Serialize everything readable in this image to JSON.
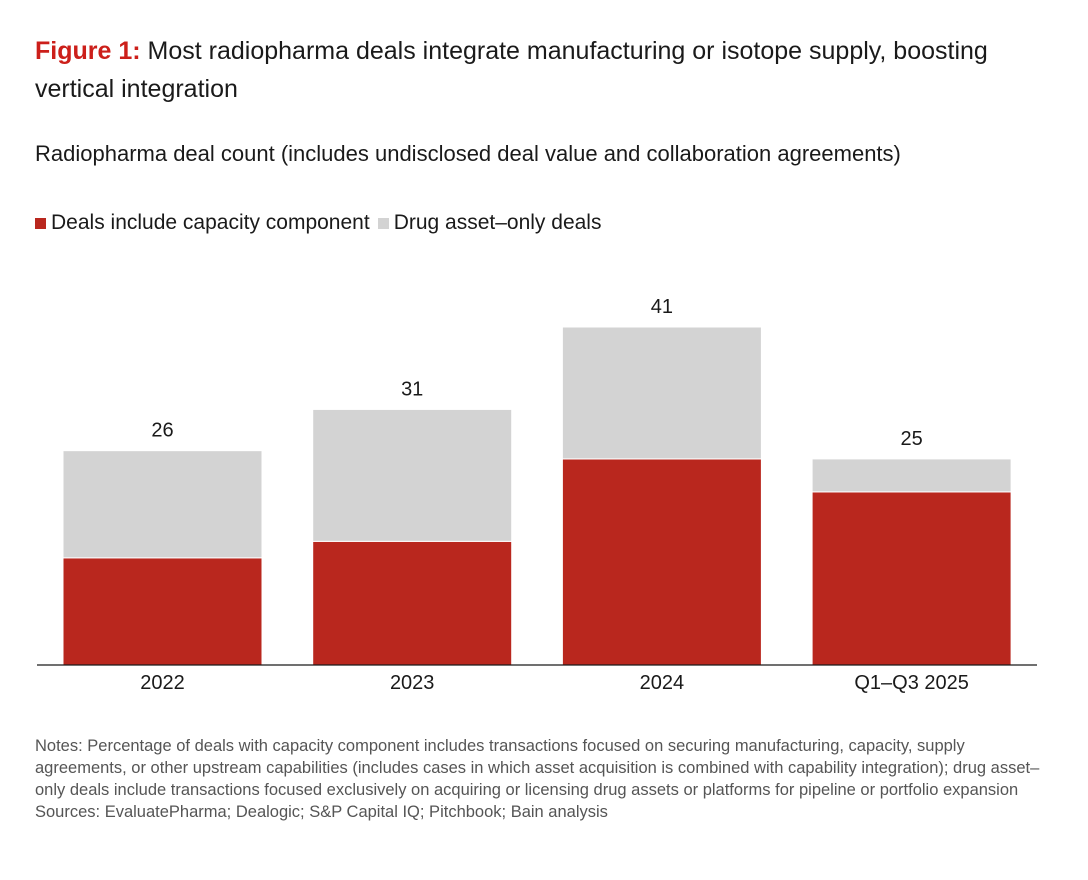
{
  "title": {
    "lead": "Figure 1:",
    "text": "Most radiopharma deals integrate manufacturing or isotope supply, boosting vertical integration"
  },
  "colors": {
    "capacity": "#b9271e",
    "drug_only": "#d3d3d3",
    "title_accent": "#cc1f1a"
  },
  "chart_data": {
    "type": "bar",
    "stacked": true,
    "title": "Radiopharma deal count (includes undisclosed deal value and collaboration agreements)",
    "categories": [
      "2022",
      "2023",
      "2024",
      "Q1–Q3 2025"
    ],
    "series": [
      {
        "name": "Deals include capacity component",
        "values": [
          13,
          15,
          25,
          21
        ]
      },
      {
        "name": "Drug asset–only deals",
        "values": [
          13,
          16,
          16,
          4
        ]
      }
    ],
    "totals": [
      "26",
      "31",
      "41",
      "25"
    ],
    "ylim": [
      0,
      41
    ],
    "grid": false,
    "legend": "top-left"
  },
  "notes": "Notes: Percentage of deals with capacity component includes transactions focused on securing manufacturing, capacity, supply agreements, or other upstream capabilities (includes cases in which asset acquisition is combined with capability integration); drug asset–only deals include transactions focused exclusively on acquiring or licensing drug assets or platforms for pipeline or portfolio expansion",
  "sources": "Sources: EvaluatePharma; Dealogic; S&P Capital IQ; Pitchbook; Bain analysis"
}
